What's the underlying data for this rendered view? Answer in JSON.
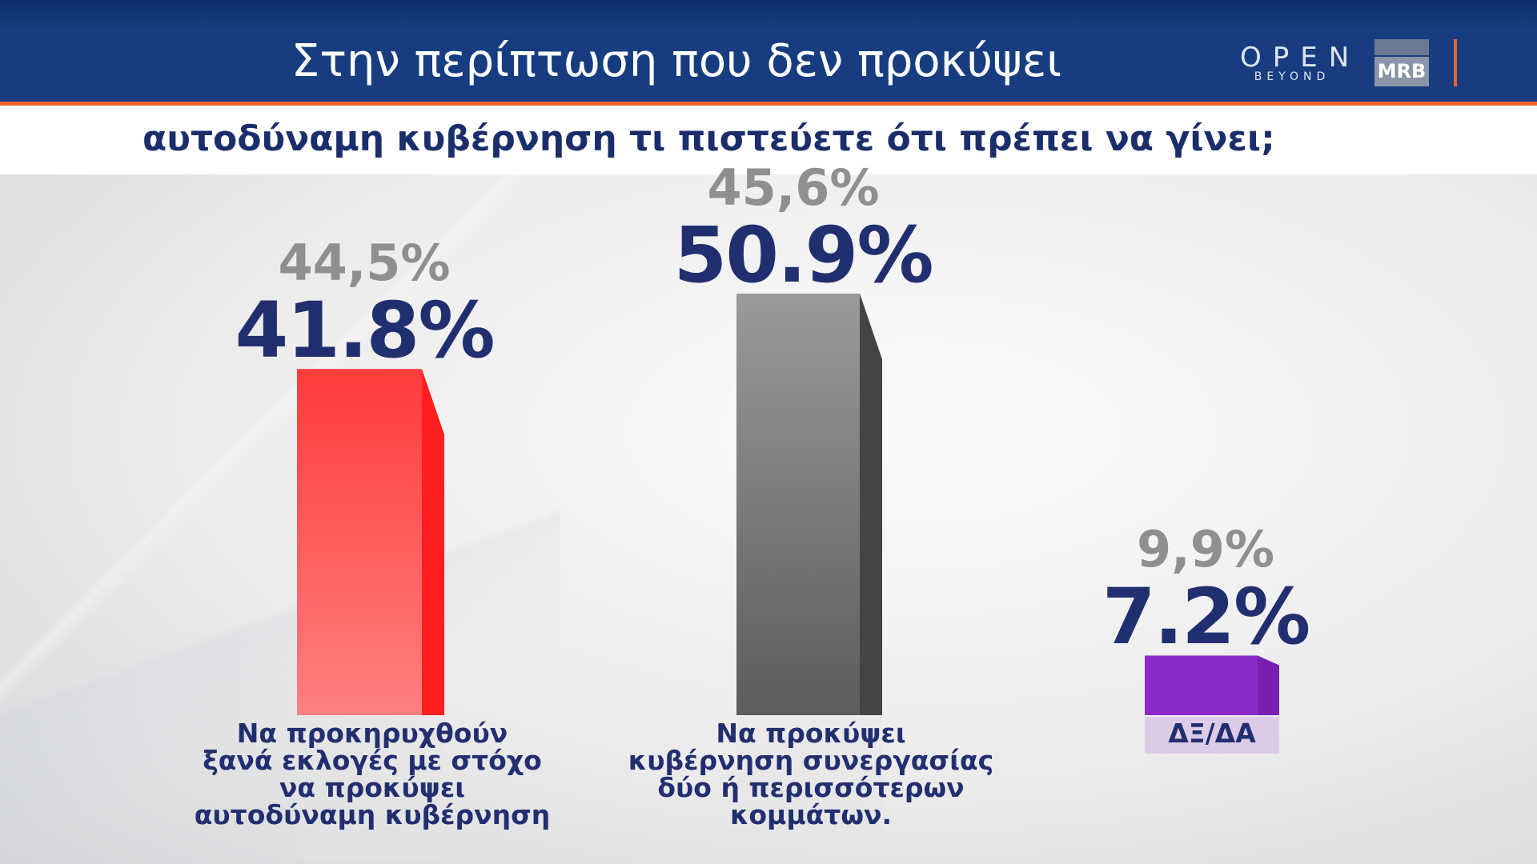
{
  "header": {
    "title": "Στην περίπτωση που δεν προκύψει",
    "subtitle": "αυτοδύναμη κυβέρνηση τι πιστεύετε ότι πρέπει να γίνει;"
  },
  "logos": {
    "open": "OPEN",
    "open_tag": "BEYOND",
    "mrb": "MRB"
  },
  "colors": {
    "header": "#173d80",
    "accent": "#f0622a",
    "value": "#212f70",
    "previous": "#8f8f8f"
  },
  "chart_data": {
    "type": "bar",
    "categories": [
      "Να προκηρυχθούν ξανά εκλογές με στόχο να προκύψει αυτοδύναμη κυβέρνηση",
      "Να προκύψει κυβέρνηση συνεργασίας δύο ή περισσότερων κομμάτων.",
      "ΔΞ/ΔΑ"
    ],
    "category_lines": [
      [
        "Να προκηρυχθούν",
        "ξανά εκλογές με στόχο",
        "να προκύψει",
        "αυτοδύναμη κυβέρνηση"
      ],
      [
        "Να προκύψει",
        "κυβέρνηση συνεργασίας",
        "δύο ή περισσότερων",
        "κομμάτων."
      ],
      [
        "ΔΞ/ΔΑ"
      ]
    ],
    "series": [
      {
        "values": [
          41.8,
          50.9,
          7.2
        ],
        "labels": [
          "41.8%",
          "50.9%",
          "7.2%"
        ],
        "colors": [
          "#ff4a4a",
          "#7a7a7a",
          "#8a2bc8"
        ]
      },
      {
        "values": [
          44.5,
          45.6,
          9.9
        ],
        "labels": [
          "44,5%",
          "45,6%",
          "9,9%"
        ]
      }
    ],
    "ylim": [
      0,
      50.9
    ]
  }
}
